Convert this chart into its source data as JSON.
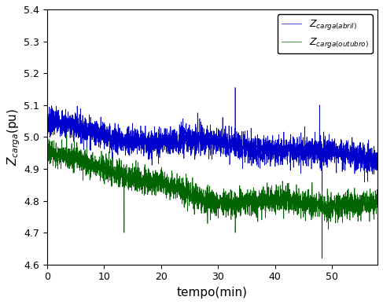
{
  "xlabel": "tempo(min)",
  "xlim": [
    0,
    58
  ],
  "ylim": [
    4.6,
    5.4
  ],
  "yticks": [
    4.6,
    4.7,
    4.8,
    4.9,
    5.0,
    5.1,
    5.2,
    5.3,
    5.4
  ],
  "xticks": [
    0,
    10,
    20,
    30,
    40,
    50
  ],
  "blue_color": "#0000CC",
  "green_color": "#006400",
  "n_points": 3480,
  "background_color": "#FFFFFF"
}
